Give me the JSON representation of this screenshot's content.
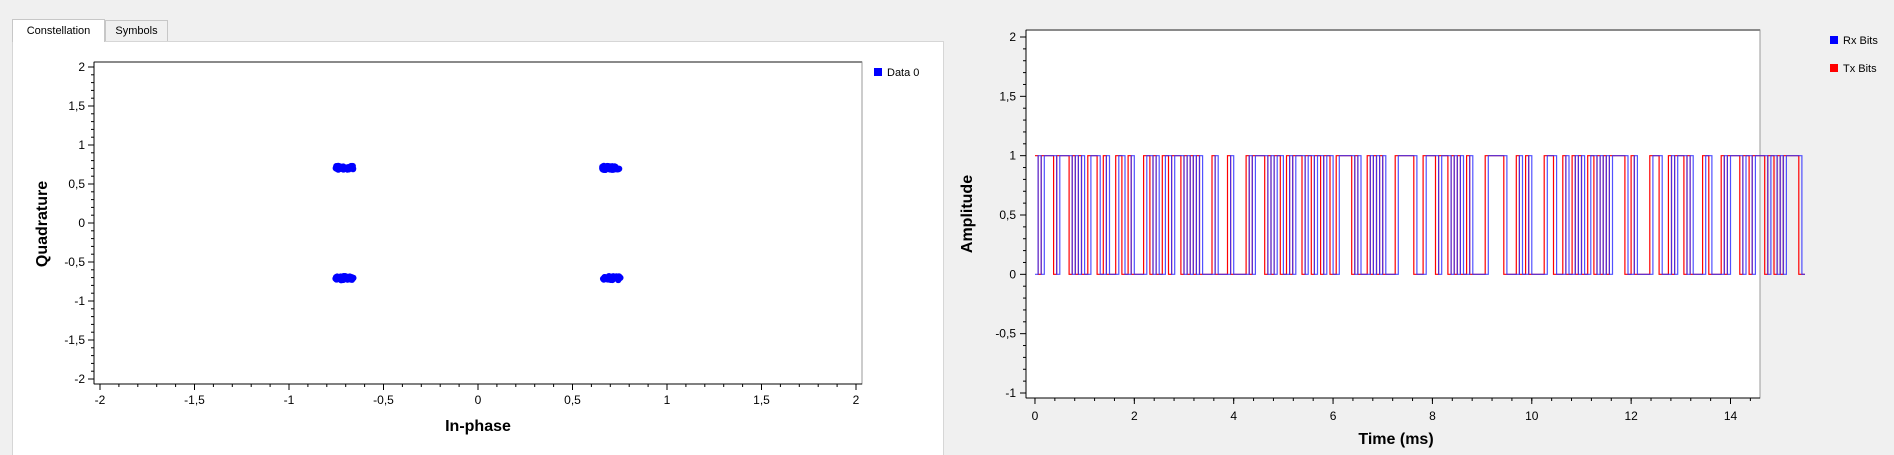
{
  "tabs": [
    {
      "label": "Constellation",
      "active": true
    },
    {
      "label": "Symbols",
      "active": false
    }
  ],
  "chart_data": [
    {
      "type": "scatter",
      "xlabel": "In-phase",
      "ylabel": "Quadrature",
      "xlim": [
        -2,
        2
      ],
      "ylim": [
        -2,
        2
      ],
      "xticks": [
        "-2",
        "-1,5",
        "-1",
        "-0,5",
        "0",
        "0,5",
        "1",
        "1,5",
        "2"
      ],
      "yticks": [
        "2",
        "1,5",
        "1",
        "0,5",
        "0",
        "-0,5",
        "-1",
        "-1,5",
        "-2"
      ],
      "legend": {
        "position": "top-right",
        "entries": [
          "Data 0"
        ]
      },
      "series": [
        {
          "name": "Data 0",
          "color": "#0000ff",
          "points": [
            [
              -0.707,
              0.707
            ],
            [
              0.707,
              0.707
            ],
            [
              -0.707,
              -0.707
            ],
            [
              0.707,
              -0.707
            ]
          ]
        }
      ]
    },
    {
      "type": "line",
      "xlabel": "Time (ms)",
      "ylabel": "Amplitude",
      "xlim": [
        -0.1,
        15.6
      ],
      "ylim": [
        -1,
        2
      ],
      "xticks": [
        "0",
        "2",
        "4",
        "6",
        "8",
        "10",
        "12",
        "14"
      ],
      "yticks": [
        "2",
        "1,5",
        "1",
        "0,5",
        "0",
        "-0,5",
        "-1"
      ],
      "legend": {
        "position": "top-right",
        "entries": [
          "Rx Bits",
          "Tx Bits"
        ]
      },
      "series": [
        {
          "name": "Rx Bits",
          "color": "#3333ff"
        },
        {
          "name": "Tx Bits",
          "color": "#ff0000"
        }
      ]
    }
  ]
}
